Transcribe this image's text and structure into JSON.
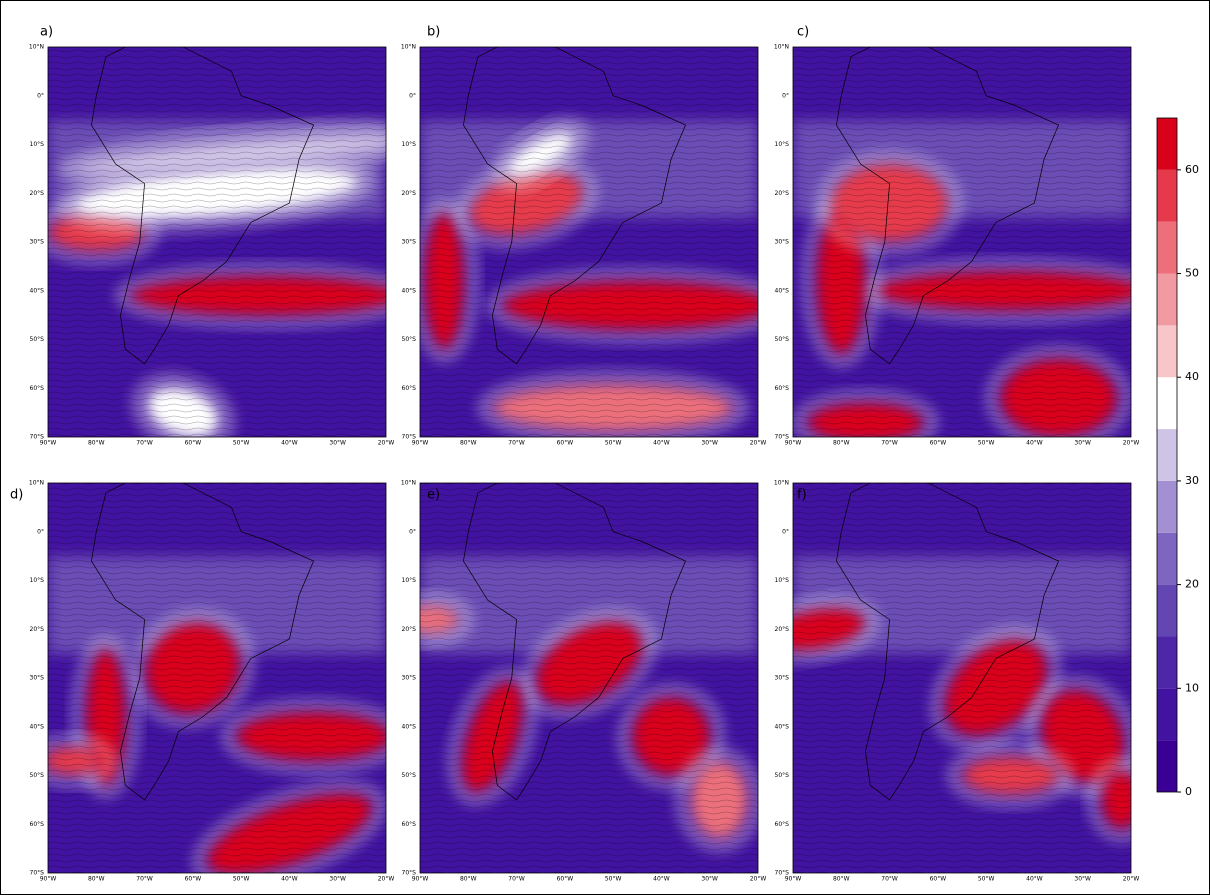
{
  "panels": [
    {
      "label": "a)"
    },
    {
      "label": "b)"
    },
    {
      "label": "c)"
    },
    {
      "label": "d)"
    },
    {
      "label": "e)"
    },
    {
      "label": "f)"
    }
  ],
  "lat_ticks": [
    "10°N",
    "0°",
    "10°S",
    "20°S",
    "30°S",
    "40°S",
    "50°S",
    "60°S",
    "70°S"
  ],
  "lon_ticks": [
    "90°W",
    "80°W",
    "70°W",
    "60°W",
    "50°W",
    "40°W",
    "30°W",
    "20°W"
  ],
  "colorbar": {
    "range": [
      0,
      65
    ],
    "ticks": [
      0,
      10,
      20,
      30,
      40,
      50,
      60
    ],
    "colors": [
      "#3a0096",
      "#4212a0",
      "#4e26a8",
      "#6446b3",
      "#7e66c0",
      "#a290d2",
      "#cfc4e6",
      "#ffffff",
      "#f8c6c9",
      "#f29aa2",
      "#ec6f7b",
      "#e63a4c",
      "#d9001a"
    ]
  }
}
